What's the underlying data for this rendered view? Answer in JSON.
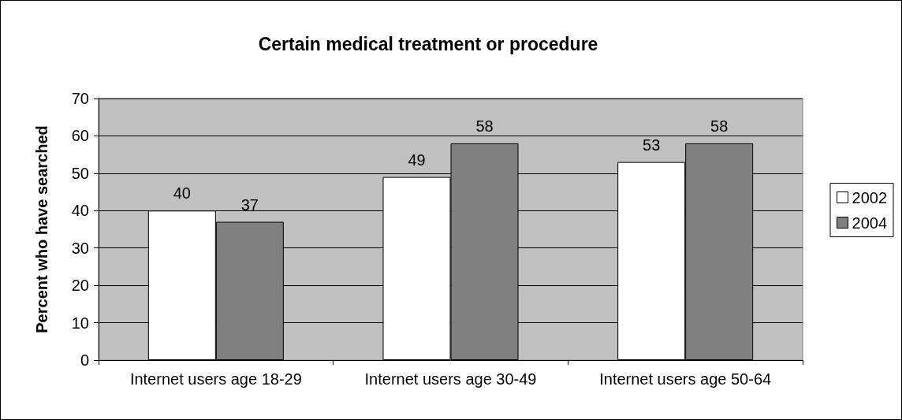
{
  "chart_data": {
    "type": "bar",
    "title": "Certain medical treatment or procedure",
    "ylabel": "Percent who have searched",
    "categories": [
      "Internet users age 18-29",
      "Internet users age 30-49",
      "Internet users age 50-64"
    ],
    "series": [
      {
        "name": "2002",
        "color": "#ffffff",
        "values": [
          40,
          49,
          53
        ]
      },
      {
        "name": "2004",
        "color": "#808080",
        "values": [
          37,
          58,
          58
        ]
      }
    ],
    "ylim": [
      0,
      70
    ],
    "yticks": [
      0,
      10,
      20,
      30,
      40,
      50,
      60,
      70
    ],
    "grid": "y",
    "legend": "right",
    "data_labels": true
  }
}
